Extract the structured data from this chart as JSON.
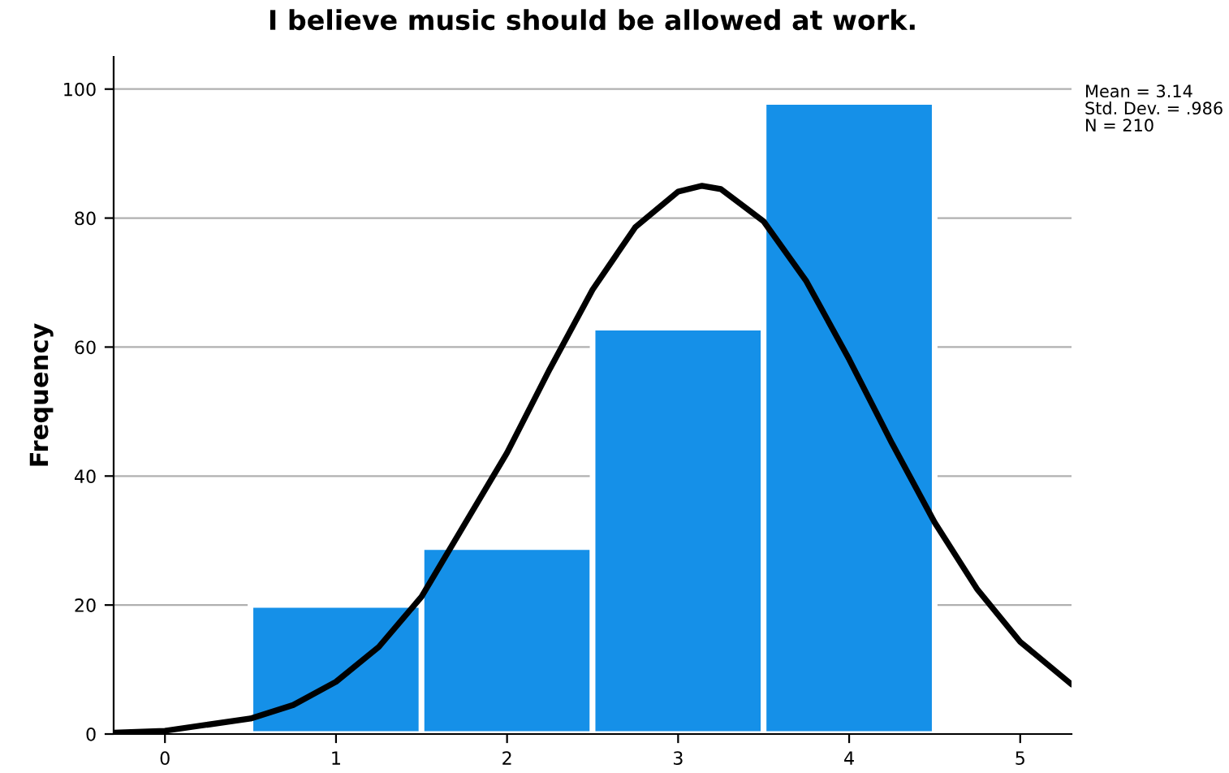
{
  "chart_data": {
    "type": "histogram",
    "title": "I believe music should be allowed at work.",
    "ylabel": "Frequency",
    "bins": [
      0.5,
      1.5,
      2.5,
      3.5,
      4.5
    ],
    "values": [
      20,
      29,
      63,
      98
    ],
    "color": "#1590e8",
    "series": [
      {
        "type": "line",
        "color": "#000000",
        "x": [
          -0.3,
          0,
          0.5,
          0.75,
          1,
          1.25,
          1.5,
          2,
          2.25,
          2.5,
          2.75,
          3,
          3.14,
          3.25,
          3.5,
          3.75,
          4,
          4.25,
          4.5,
          4.75,
          5,
          5.3
        ],
        "values": [
          0.2,
          0.5,
          2.4,
          4.5,
          8.1,
          13.5,
          21.3,
          43.6,
          56.6,
          68.9,
          78.6,
          84.1,
          85.0,
          84.5,
          79.5,
          70.2,
          58.1,
          45.1,
          32.8,
          22.4,
          14.3,
          7.7
        ]
      }
    ],
    "xlim": [
      -0.3,
      5.3
    ],
    "xticks": [
      0,
      1,
      2,
      3,
      4,
      5
    ],
    "ylim": [
      0,
      105
    ],
    "yticks": [
      0,
      20,
      40,
      60,
      80,
      100
    ],
    "grid": "y",
    "marker": "none",
    "line_style": "solid",
    "annotations": [
      "Mean = 3.14",
      "Std. Dev. = .986",
      "N = 210"
    ]
  }
}
